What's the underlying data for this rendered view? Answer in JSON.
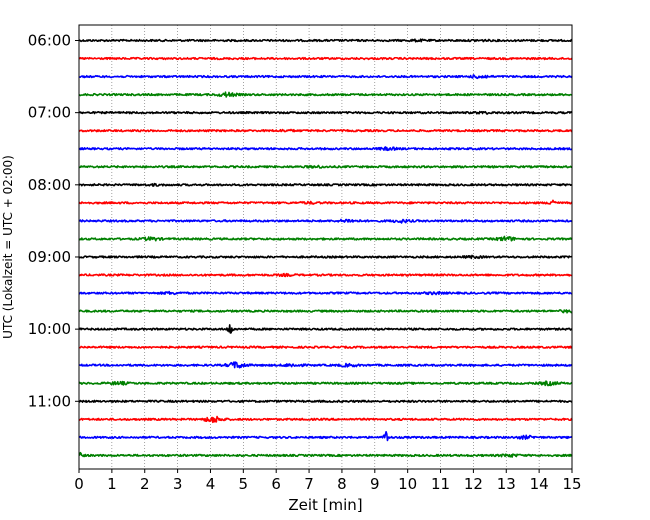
{
  "chart_data": {
    "type": "line",
    "title": "",
    "xlabel": "Zeit  [min]",
    "ylabel": "UTC (Lokalzeit = UTC + 02:00)",
    "xlim": [
      0,
      15
    ],
    "x_ticks": [
      "0",
      "1",
      "2",
      "3",
      "4",
      "5",
      "6",
      "7",
      "8",
      "9",
      "10",
      "11",
      "12",
      "13",
      "14",
      "15"
    ],
    "y_tick_labels": [
      "06:00",
      "07:00",
      "08:00",
      "09:00",
      "10:00",
      "11:00"
    ],
    "grid": true,
    "trace_interval_min": 15,
    "start_time": "06:00",
    "colors": [
      "#000000",
      "#ff0000",
      "#0000ff",
      "#008000"
    ],
    "series": [
      {
        "time": "06:00",
        "events": [
          {
            "x": 10.3,
            "amp": 0.5
          },
          {
            "x": 12.2,
            "amp": 0.4
          }
        ]
      },
      {
        "time": "06:15",
        "events": []
      },
      {
        "time": "06:30",
        "events": [
          {
            "x": 12.2,
            "amp": 1.4
          }
        ]
      },
      {
        "time": "06:45",
        "events": [
          {
            "x": 4.5,
            "amp": 1.8
          }
        ]
      },
      {
        "time": "07:00",
        "events": [
          {
            "x": 12.3,
            "amp": 0.6
          }
        ]
      },
      {
        "time": "07:15",
        "events": [
          {
            "x": 6.3,
            "amp": 0.6
          }
        ]
      },
      {
        "time": "07:30",
        "events": [
          {
            "x": 9.4,
            "amp": 1.0
          }
        ]
      },
      {
        "time": "07:45",
        "events": [
          {
            "x": 7.2,
            "amp": 0.7
          }
        ]
      },
      {
        "time": "08:00",
        "events": [
          {
            "x": 2.3,
            "amp": 0.5
          }
        ]
      },
      {
        "time": "08:15",
        "events": [
          {
            "x": 14.4,
            "amp": 5.0
          },
          {
            "x": 7.0,
            "amp": 0.6
          }
        ]
      },
      {
        "time": "08:30",
        "events": [
          {
            "x": 8.2,
            "amp": 1.2
          },
          {
            "x": 9.8,
            "amp": 1.2
          }
        ]
      },
      {
        "time": "08:45",
        "events": [
          {
            "x": 2.2,
            "amp": 1.3
          },
          {
            "x": 13.0,
            "amp": 1.8
          }
        ]
      },
      {
        "time": "09:00",
        "events": [
          {
            "x": 12.0,
            "amp": 0.7
          }
        ]
      },
      {
        "time": "09:15",
        "events": [
          {
            "x": 6.3,
            "amp": 0.6
          }
        ]
      },
      {
        "time": "09:30",
        "events": [
          {
            "x": 2.8,
            "amp": 0.8
          },
          {
            "x": 10.8,
            "amp": 0.8
          }
        ]
      },
      {
        "time": "09:45",
        "events": [
          {
            "x": 14.9,
            "amp": 1.0
          }
        ]
      },
      {
        "time": "10:00",
        "events": [
          {
            "x": 4.6,
            "amp": 5.5
          }
        ]
      },
      {
        "time": "10:15",
        "events": []
      },
      {
        "time": "10:30",
        "events": [
          {
            "x": 4.8,
            "amp": 2.8
          },
          {
            "x": 6.5,
            "amp": 1.2
          },
          {
            "x": 8.2,
            "amp": 1.0
          }
        ]
      },
      {
        "time": "10:45",
        "events": [
          {
            "x": 1.2,
            "amp": 1.1
          },
          {
            "x": 14.3,
            "amp": 1.5
          }
        ]
      },
      {
        "time": "11:00",
        "events": []
      },
      {
        "time": "11:15",
        "events": [
          {
            "x": 4.1,
            "amp": 2.8
          }
        ]
      },
      {
        "time": "11:30",
        "events": [
          {
            "x": 9.35,
            "amp": 6.0
          },
          {
            "x": 13.6,
            "amp": 1.2
          }
        ]
      },
      {
        "time": "11:45",
        "events": [
          {
            "x": 0.05,
            "amp": 4.0
          },
          {
            "x": 13.1,
            "amp": 1.0
          }
        ]
      }
    ]
  }
}
